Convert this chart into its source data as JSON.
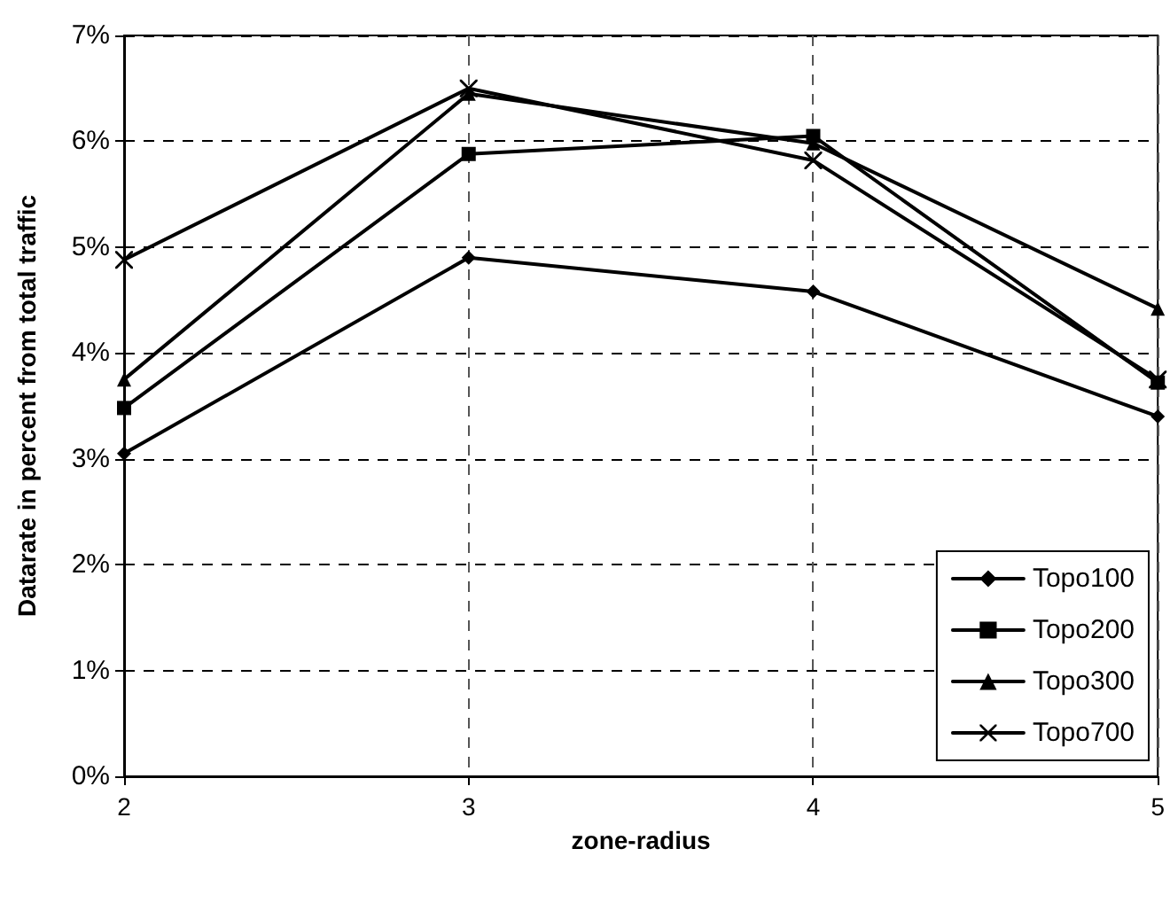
{
  "chart_data": {
    "type": "line",
    "xlabel": "zone-radius",
    "ylabel": "Datarate in percent from total traffic",
    "x": [
      2,
      3,
      4,
      5
    ],
    "xlim": [
      2,
      5
    ],
    "xticks": [
      2,
      3,
      4,
      5
    ],
    "ylim": [
      0,
      7
    ],
    "yticks": [
      {
        "value": 0,
        "label": "0%"
      },
      {
        "value": 1,
        "label": "1%"
      },
      {
        "value": 2,
        "label": "2%"
      },
      {
        "value": 3,
        "label": "3%"
      },
      {
        "value": 4,
        "label": "4%"
      },
      {
        "value": 5,
        "label": "5%"
      },
      {
        "value": 6,
        "label": "6%"
      },
      {
        "value": 7,
        "label": "7%"
      }
    ],
    "grid": true,
    "legend": "bottom right",
    "series": [
      {
        "name": "Topo100",
        "color": "#000000",
        "marker": "diamond",
        "values": [
          3.05,
          4.9,
          4.58,
          3.4
        ]
      },
      {
        "name": "Topo200",
        "color": "#000000",
        "marker": "square",
        "values": [
          3.48,
          5.88,
          6.05,
          3.72
        ]
      },
      {
        "name": "Topo300",
        "color": "#000000",
        "marker": "triangle",
        "values": [
          3.75,
          6.45,
          5.98,
          4.42
        ]
      },
      {
        "name": "Topo700",
        "color": "#000000",
        "marker": "cross",
        "values": [
          4.88,
          6.5,
          5.82,
          3.75
        ]
      }
    ]
  }
}
